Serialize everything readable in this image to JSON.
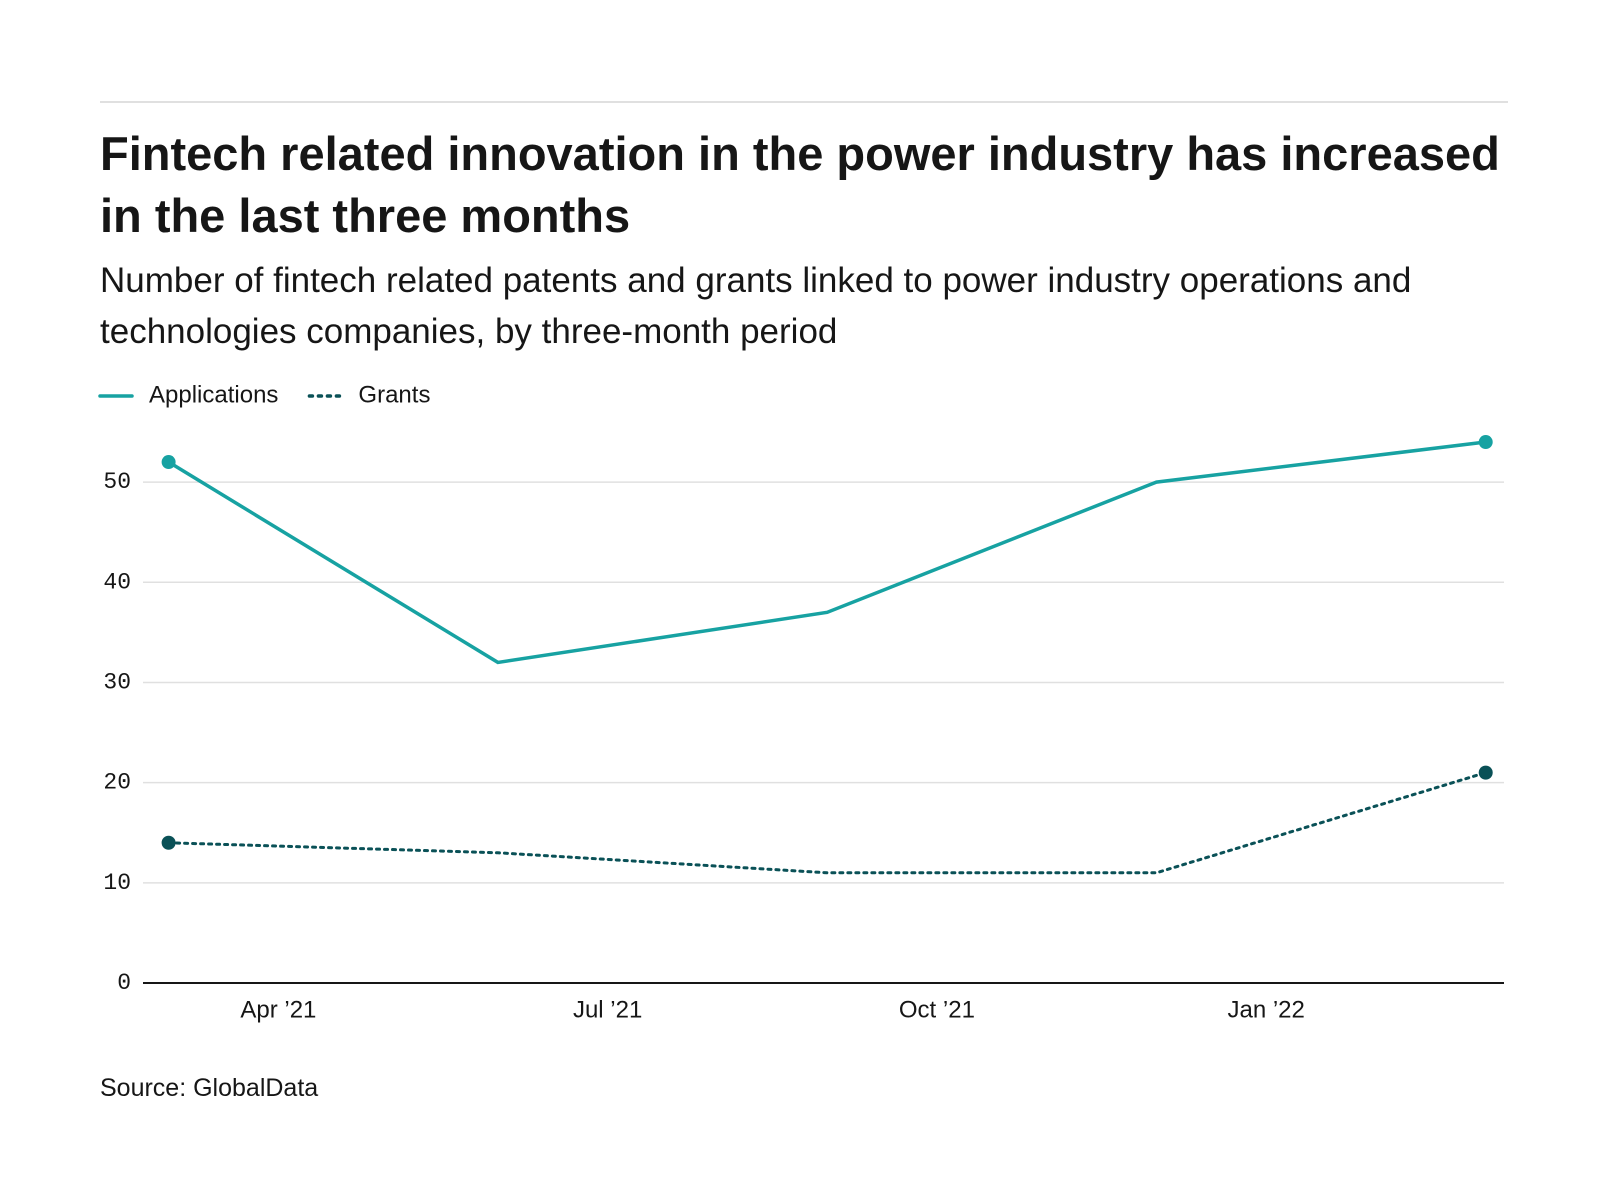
{
  "chart_data": {
    "type": "line",
    "title": "Fintech related innovation in the power industry has increased in the last three months",
    "subtitle": "Number of fintech related patents and grants linked to power industry operations and technologies companies, by three-month period",
    "source": "Source: GlobalData",
    "x": [
      "2021-03",
      "2021-06",
      "2021-09",
      "2021-12",
      "2022-03"
    ],
    "series": [
      {
        "name": "Applications",
        "color": "#17a2a2",
        "style": "solid",
        "values": [
          52,
          32,
          37,
          50,
          54
        ]
      },
      {
        "name": "Grants",
        "color": "#0a5157",
        "style": "dotted",
        "values": [
          14,
          13,
          11,
          11,
          21
        ]
      }
    ],
    "xlim": [
      "2021-02-24",
      "2022-03-06"
    ],
    "xticks": [
      {
        "value": "2021-04",
        "label": "Apr ’21"
      },
      {
        "value": "2021-07",
        "label": "Jul ’21"
      },
      {
        "value": "2021-10",
        "label": "Oct ’21"
      },
      {
        "value": "2022-01",
        "label": "Jan ’22"
      }
    ],
    "ylim": [
      0,
      55
    ],
    "yticks": [
      0,
      10,
      20,
      30,
      40,
      50
    ],
    "grid": true,
    "end_markers": true,
    "legend": "top-left"
  }
}
